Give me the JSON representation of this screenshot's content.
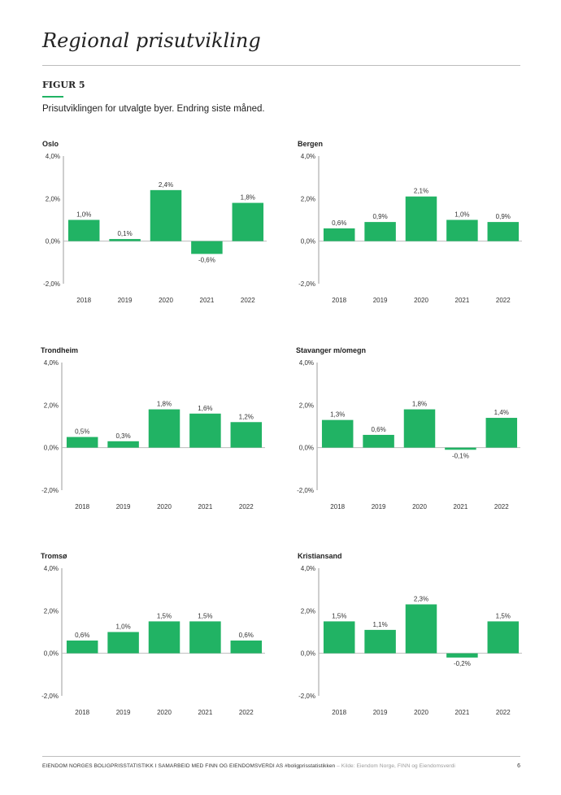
{
  "page": {
    "title": "Regional prisutvikling",
    "figure_label": "FIGUR 5",
    "caption": "Prisutviklingen for utvalgte byer. Endring siste måned.",
    "footer": "EIENDOM NORGES BOLIGPRISSTATISTIKK I SAMARBEID MED FINN OG EIENDOMSVERDI AS #boligprisstatistikken",
    "footer_source": " – Kilde: Eiendom Norge, FINN og Eiendomsverdi",
    "page_number": "6"
  },
  "colors": {
    "bar": "#21b364",
    "accent": "#21b364",
    "axis": "#9e9e9e"
  },
  "chart_data": [
    {
      "type": "bar",
      "title": "Oslo",
      "categories": [
        "2018",
        "2019",
        "2020",
        "2021",
        "2022"
      ],
      "values": [
        1.0,
        0.1,
        2.4,
        -0.6,
        1.8
      ],
      "value_labels": [
        "1,0%",
        "0,1%",
        "2,4%",
        "-0,6%",
        "1,8%"
      ],
      "ylim": [
        -2,
        4
      ],
      "yticks": [
        4,
        2,
        0,
        -2
      ],
      "ytick_labels": [
        "4,0%",
        "2,0%",
        "0,0%",
        "-2,0%"
      ],
      "grid": false,
      "legend": "none"
    },
    {
      "type": "bar",
      "title": "Bergen",
      "categories": [
        "2018",
        "2019",
        "2020",
        "2021",
        "2022"
      ],
      "values": [
        0.6,
        0.9,
        2.1,
        1.0,
        0.9
      ],
      "value_labels": [
        "0,6%",
        "0,9%",
        "2,1%",
        "1,0%",
        "0,9%"
      ],
      "ylim": [
        -2,
        4
      ],
      "yticks": [
        4,
        2,
        0,
        -2
      ],
      "ytick_labels": [
        "4,0%",
        "2,0%",
        "0,0%",
        "-2,0%"
      ],
      "grid": false,
      "legend": "none"
    },
    {
      "type": "bar",
      "title": "Trondheim",
      "categories": [
        "2018",
        "2019",
        "2020",
        "2021",
        "2022"
      ],
      "values": [
        0.5,
        0.3,
        1.8,
        1.6,
        1.2
      ],
      "value_labels": [
        "0,5%",
        "0,3%",
        "1,8%",
        "1,6%",
        "1,2%"
      ],
      "ylim": [
        -2,
        4
      ],
      "yticks": [
        4,
        2,
        0,
        -2
      ],
      "ytick_labels": [
        "4,0%",
        "2,0%",
        "0,0%",
        "-2,0%"
      ],
      "grid": false,
      "legend": "none"
    },
    {
      "type": "bar",
      "title": "Stavanger m/omegn",
      "categories": [
        "2018",
        "2019",
        "2020",
        "2021",
        "2022"
      ],
      "values": [
        1.3,
        0.6,
        1.8,
        -0.1,
        1.4
      ],
      "value_labels": [
        "1,3%",
        "0,6%",
        "1,8%",
        "-0,1%",
        "1,4%"
      ],
      "ylim": [
        -2,
        4
      ],
      "yticks": [
        4,
        2,
        0,
        -2
      ],
      "ytick_labels": [
        "4,0%",
        "2,0%",
        "0,0%",
        "-2,0%"
      ],
      "grid": false,
      "legend": "none"
    },
    {
      "type": "bar",
      "title": "Tromsø",
      "categories": [
        "2018",
        "2019",
        "2020",
        "2021",
        "2022"
      ],
      "values": [
        0.6,
        1.0,
        1.5,
        1.5,
        0.6
      ],
      "value_labels": [
        "0,6%",
        "1,0%",
        "1,5%",
        "1,5%",
        "0,6%"
      ],
      "ylim": [
        -2,
        4
      ],
      "yticks": [
        4,
        2,
        0,
        -2
      ],
      "ytick_labels": [
        "4,0%",
        "2,0%",
        "0,0%",
        "-2,0%"
      ],
      "grid": false,
      "legend": "none"
    },
    {
      "type": "bar",
      "title": "Kristiansand",
      "categories": [
        "2018",
        "2019",
        "2020",
        "2021",
        "2022"
      ],
      "values": [
        1.5,
        1.1,
        2.3,
        -0.2,
        1.5
      ],
      "value_labels": [
        "1,5%",
        "1,1%",
        "2,3%",
        "-0,2%",
        "1,5%"
      ],
      "ylim": [
        -2,
        4
      ],
      "yticks": [
        4,
        2,
        0,
        -2
      ],
      "ytick_labels": [
        "4,0%",
        "2,0%",
        "0,0%",
        "-2,0%"
      ],
      "grid": false,
      "legend": "none"
    }
  ]
}
